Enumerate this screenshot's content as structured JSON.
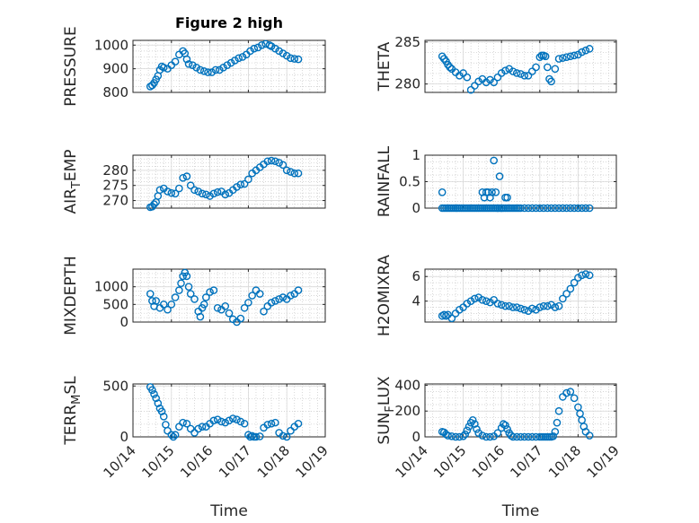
{
  "figure_title": "Figure 2 high",
  "colors": {
    "marker": "#0072BD",
    "axis": "#262626",
    "grid": "#c8c8c8"
  },
  "chart_data": [
    {
      "type": "scatter",
      "id": "pressure",
      "ylabel": "PRESSURE",
      "ylabel_sub": null,
      "title": "Figure 2 high",
      "xlabel": "",
      "grid": true,
      "xlim": [
        0,
        5
      ],
      "ylim": [
        800,
        1020
      ],
      "yticks": [
        800,
        900,
        1000
      ],
      "ytick_labels": [
        "800",
        "900",
        "1000"
      ],
      "x": [
        0.45,
        0.5,
        0.55,
        0.6,
        0.65,
        0.7,
        0.75,
        0.8,
        0.9,
        1.0,
        1.1,
        1.2,
        1.3,
        1.35,
        1.4,
        1.45,
        1.55,
        1.65,
        1.75,
        1.85,
        1.95,
        2.05,
        2.15,
        2.25,
        2.35,
        2.45,
        2.55,
        2.65,
        2.75,
        2.85,
        2.95,
        3.05,
        3.15,
        3.25,
        3.35,
        3.45,
        3.55,
        3.6,
        3.7,
        3.8,
        3.9,
        4.0,
        4.1,
        4.2,
        4.3
      ],
      "y": [
        825,
        830,
        840,
        855,
        870,
        895,
        910,
        905,
        900,
        915,
        930,
        960,
        975,
        965,
        940,
        920,
        915,
        905,
        895,
        890,
        885,
        885,
        895,
        895,
        905,
        915,
        925,
        935,
        945,
        950,
        960,
        975,
        985,
        990,
        1000,
        1005,
        1000,
        995,
        985,
        975,
        965,
        955,
        945,
        942,
        940
      ]
    },
    {
      "type": "scatter",
      "id": "theta",
      "ylabel": "THETA",
      "ylabel_sub": null,
      "xlabel": "",
      "grid": true,
      "xlim": [
        0,
        5
      ],
      "ylim": [
        279,
        285.2
      ],
      "yticks": [
        280,
        285
      ],
      "ytick_labels": [
        "280",
        "285"
      ],
      "x": [
        0.45,
        0.5,
        0.55,
        0.6,
        0.65,
        0.7,
        0.8,
        0.9,
        1.0,
        1.1,
        1.2,
        1.3,
        1.4,
        1.5,
        1.6,
        1.7,
        1.8,
        1.9,
        2.0,
        2.1,
        2.2,
        2.3,
        2.4,
        2.5,
        2.6,
        2.7,
        2.8,
        2.9,
        3.0,
        3.05,
        3.1,
        3.15,
        3.2,
        3.25,
        3.3,
        3.4,
        3.5,
        3.6,
        3.7,
        3.8,
        3.9,
        4.0,
        4.1,
        4.2,
        4.3
      ],
      "y": [
        283.3,
        283.0,
        282.7,
        282.3,
        282.0,
        281.8,
        281.4,
        281.0,
        281.3,
        280.8,
        279.3,
        279.8,
        280.3,
        280.6,
        280.2,
        280.5,
        280.2,
        280.8,
        281.3,
        281.6,
        281.8,
        281.5,
        281.3,
        281.2,
        281.0,
        281.0,
        281.5,
        282.0,
        283.2,
        283.4,
        283.4,
        283.3,
        282.0,
        280.6,
        280.3,
        281.8,
        283.0,
        283.1,
        283.2,
        283.3,
        283.4,
        283.5,
        283.8,
        284.0,
        284.2
      ]
    },
    {
      "type": "scatter",
      "id": "air_temp",
      "ylabel": "AIR",
      "ylabel_sub": "T",
      "ylabel_rest": "EMP",
      "xlabel": "",
      "grid": true,
      "xlim": [
        0,
        5
      ],
      "ylim": [
        267.5,
        285
      ],
      "yticks": [
        270,
        275,
        280
      ],
      "ytick_labels": [
        "270",
        "275",
        "280"
      ],
      "x": [
        0.45,
        0.5,
        0.55,
        0.6,
        0.65,
        0.7,
        0.8,
        0.9,
        1.0,
        1.1,
        1.2,
        1.3,
        1.4,
        1.5,
        1.6,
        1.7,
        1.8,
        1.9,
        2.0,
        2.1,
        2.2,
        2.3,
        2.4,
        2.5,
        2.6,
        2.7,
        2.8,
        2.9,
        3.0,
        3.1,
        3.2,
        3.3,
        3.4,
        3.5,
        3.6,
        3.7,
        3.8,
        3.9,
        4.0,
        4.1,
        4.2,
        4.3
      ],
      "y": [
        267.8,
        268.0,
        268.8,
        269.5,
        271.5,
        273.5,
        274.0,
        273.0,
        272.5,
        272.3,
        274.0,
        277.5,
        278.0,
        275.0,
        273.5,
        273.0,
        272.3,
        272.0,
        271.5,
        272.3,
        272.8,
        273.0,
        272.0,
        272.5,
        273.5,
        274.5,
        275.3,
        275.5,
        277.0,
        279.0,
        280.0,
        281.0,
        282.0,
        283.0,
        283.2,
        283.0,
        282.5,
        281.8,
        280.0,
        279.5,
        279.0,
        279.0
      ]
    },
    {
      "type": "scatter",
      "id": "rainfall",
      "ylabel": "RAINFALL",
      "ylabel_sub": null,
      "xlabel": "",
      "grid": true,
      "xlim": [
        0,
        5
      ],
      "ylim": [
        0,
        1
      ],
      "yticks": [
        0,
        0.5,
        1
      ],
      "ytick_labels": [
        "0",
        "0.5",
        "1"
      ],
      "x": [
        0.45,
        0.5,
        0.55,
        0.6,
        0.65,
        0.7,
        0.75,
        0.8,
        0.85,
        0.9,
        0.95,
        1.0,
        1.05,
        1.1,
        1.15,
        1.2,
        1.25,
        1.3,
        1.35,
        1.4,
        1.45,
        1.5,
        1.55,
        1.6,
        1.65,
        1.7,
        1.75,
        1.8,
        1.85,
        1.9,
        1.95,
        2.0,
        2.05,
        2.1,
        2.15,
        2.2,
        2.25,
        2.3,
        2.35,
        2.4,
        2.45,
        2.5,
        2.6,
        2.7,
        2.8,
        2.9,
        3.0,
        3.1,
        3.2,
        3.3,
        3.4,
        3.5,
        3.6,
        3.7,
        3.8,
        3.9,
        4.0,
        4.1,
        4.2,
        4.3,
        0.45,
        1.5,
        1.55,
        1.6,
        1.65,
        1.7,
        1.75,
        1.8,
        1.85,
        1.9,
        1.95,
        2.0,
        2.1,
        2.15
      ],
      "y": [
        0,
        0,
        0,
        0,
        0,
        0,
        0,
        0,
        0,
        0,
        0,
        0,
        0,
        0,
        0,
        0,
        0,
        0,
        0,
        0,
        0,
        0,
        0,
        0,
        0,
        0,
        0,
        0,
        0,
        0,
        0,
        0,
        0,
        0,
        0,
        0,
        0,
        0,
        0,
        0,
        0,
        0,
        0,
        0,
        0,
        0,
        0,
        0,
        0,
        0,
        0,
        0,
        0,
        0,
        0,
        0,
        0,
        0,
        0,
        0,
        0.3,
        0.3,
        0.2,
        0.3,
        0.3,
        0.2,
        0.3,
        0.9,
        0.3,
        0,
        0.6,
        0,
        0.2,
        0.2
      ]
    },
    {
      "type": "scatter",
      "id": "mixdepth",
      "ylabel": "MIXDEPTH",
      "ylabel_sub": null,
      "xlabel": "",
      "grid": true,
      "xlim": [
        0,
        5
      ],
      "ylim": [
        0,
        1500
      ],
      "yticks": [
        0,
        500,
        1000
      ],
      "ytick_labels": [
        "0",
        "500",
        "1000"
      ],
      "x": [
        0.45,
        0.5,
        0.55,
        0.6,
        0.7,
        0.8,
        0.9,
        1.0,
        1.1,
        1.2,
        1.25,
        1.3,
        1.35,
        1.4,
        1.45,
        1.5,
        1.6,
        1.7,
        1.75,
        1.8,
        1.85,
        1.9,
        2.0,
        2.1,
        2.2,
        2.3,
        2.4,
        2.5,
        2.6,
        2.7,
        2.8,
        2.9,
        3.0,
        3.1,
        3.2,
        3.3,
        3.4,
        3.5,
        3.6,
        3.7,
        3.8,
        3.9,
        4.0,
        4.1,
        4.2,
        4.3
      ],
      "y": [
        800,
        600,
        450,
        600,
        400,
        500,
        350,
        500,
        700,
        900,
        1100,
        1300,
        1400,
        1300,
        1000,
        800,
        650,
        300,
        150,
        400,
        500,
        700,
        850,
        900,
        400,
        350,
        450,
        250,
        80,
        0,
        100,
        400,
        550,
        750,
        900,
        800,
        300,
        450,
        550,
        600,
        650,
        700,
        650,
        750,
        800,
        900
      ]
    },
    {
      "type": "scatter",
      "id": "h2omixra",
      "ylabel": "H2OMIXRA",
      "ylabel_sub": null,
      "xlabel": "",
      "grid": true,
      "xlim": [
        0,
        5
      ],
      "ylim": [
        2.3,
        6.6
      ],
      "yticks": [
        4,
        6
      ],
      "ytick_labels": [
        "4",
        "6"
      ],
      "x": [
        0.45,
        0.5,
        0.55,
        0.6,
        0.7,
        0.8,
        0.9,
        1.0,
        1.1,
        1.2,
        1.3,
        1.4,
        1.5,
        1.6,
        1.7,
        1.8,
        1.9,
        2.0,
        2.1,
        2.2,
        2.3,
        2.4,
        2.5,
        2.6,
        2.7,
        2.8,
        2.9,
        3.0,
        3.1,
        3.2,
        3.3,
        3.4,
        3.5,
        3.6,
        3.7,
        3.8,
        3.9,
        4.0,
        4.1,
        4.2,
        4.3
      ],
      "y": [
        2.8,
        2.9,
        2.8,
        2.9,
        2.6,
        3.0,
        3.3,
        3.5,
        3.8,
        4.0,
        4.2,
        4.3,
        4.1,
        4.0,
        3.9,
        4.1,
        3.8,
        3.7,
        3.6,
        3.6,
        3.5,
        3.5,
        3.4,
        3.3,
        3.2,
        3.4,
        3.3,
        3.5,
        3.6,
        3.6,
        3.7,
        3.5,
        3.6,
        4.2,
        4.6,
        5.0,
        5.5,
        5.9,
        6.1,
        6.2,
        6.1
      ]
    },
    {
      "type": "scatter",
      "id": "terr_msl",
      "ylabel": "TERR",
      "ylabel_sub": "M",
      "ylabel_rest": "SL",
      "xlabel": "Time",
      "grid": true,
      "xlim": [
        0,
        5
      ],
      "ylim": [
        0,
        520
      ],
      "yticks": [
        0,
        500
      ],
      "ytick_labels": [
        "0",
        "500"
      ],
      "xticks": [
        0,
        1,
        2,
        3,
        4,
        5
      ],
      "xtick_labels": [
        "10/14",
        "10/15",
        "10/16",
        "10/17",
        "10/18",
        "10/19"
      ],
      "x": [
        0.45,
        0.5,
        0.55,
        0.6,
        0.65,
        0.7,
        0.75,
        0.8,
        0.85,
        0.9,
        1.0,
        1.05,
        1.1,
        1.2,
        1.3,
        1.4,
        1.5,
        1.6,
        1.7,
        1.8,
        1.9,
        2.0,
        2.1,
        2.2,
        2.3,
        2.4,
        2.5,
        2.6,
        2.7,
        2.8,
        2.9,
        3.0,
        3.05,
        3.1,
        3.15,
        3.2,
        3.3,
        3.4,
        3.5,
        3.6,
        3.7,
        3.8,
        3.9,
        4.0,
        4.1,
        4.2,
        4.3
      ],
      "y": [
        490,
        460,
        420,
        380,
        330,
        280,
        250,
        200,
        120,
        60,
        20,
        0,
        20,
        100,
        140,
        130,
        80,
        40,
        80,
        100,
        100,
        130,
        160,
        170,
        150,
        140,
        160,
        180,
        170,
        150,
        130,
        20,
        0,
        10,
        0,
        0,
        5,
        90,
        120,
        130,
        140,
        40,
        10,
        0,
        60,
        100,
        130
      ]
    },
    {
      "type": "scatter",
      "id": "sun_flux",
      "ylabel": "SUN",
      "ylabel_sub": "F",
      "ylabel_rest": "LUX",
      "xlabel": "Time",
      "grid": true,
      "xlim": [
        0,
        5
      ],
      "ylim": [
        0,
        410
      ],
      "yticks": [
        0,
        200,
        400
      ],
      "ytick_labels": [
        "0",
        "200",
        "400"
      ],
      "xticks": [
        0,
        1,
        2,
        3,
        4,
        5
      ],
      "xtick_labels": [
        "10/14",
        "10/15",
        "10/16",
        "10/17",
        "10/18",
        "10/19"
      ],
      "x": [
        0.45,
        0.5,
        0.55,
        0.6,
        0.7,
        0.8,
        0.9,
        1.0,
        1.05,
        1.1,
        1.15,
        1.2,
        1.25,
        1.3,
        1.35,
        1.4,
        1.5,
        1.6,
        1.7,
        1.8,
        1.9,
        2.0,
        2.05,
        2.1,
        2.15,
        2.2,
        2.25,
        2.3,
        2.4,
        2.5,
        2.6,
        2.7,
        2.8,
        2.9,
        3.0,
        3.05,
        3.1,
        3.15,
        3.2,
        3.25,
        3.3,
        3.35,
        3.4,
        3.45,
        3.5,
        3.6,
        3.7,
        3.8,
        3.9,
        4.0,
        4.05,
        4.1,
        4.15,
        4.2,
        4.3
      ],
      "y": [
        40,
        35,
        20,
        10,
        5,
        0,
        0,
        5,
        20,
        50,
        80,
        110,
        130,
        100,
        60,
        30,
        10,
        0,
        0,
        5,
        30,
        70,
        100,
        90,
        60,
        30,
        10,
        0,
        0,
        0,
        0,
        0,
        0,
        0,
        0,
        0,
        0,
        0,
        0,
        0,
        0,
        5,
        40,
        110,
        200,
        310,
        340,
        350,
        300,
        230,
        180,
        130,
        80,
        40,
        10
      ]
    }
  ]
}
